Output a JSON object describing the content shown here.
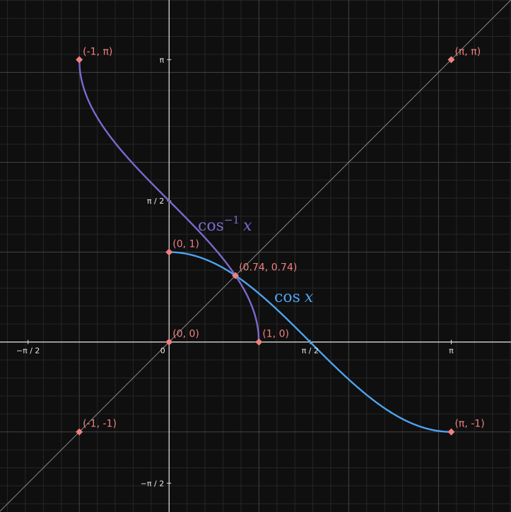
{
  "chart_data": {
    "type": "line",
    "title": "",
    "xlabel": "",
    "ylabel": "",
    "xlim": [
      -1.8828,
      3.8068
    ],
    "ylim": [
      -1.8913,
      3.8053
    ],
    "grid": true,
    "legend": "none",
    "x_ticks": [
      {
        "value": -1.5708,
        "label": "−π / 2"
      },
      {
        "value": 0,
        "label": "0"
      },
      {
        "value": 1.5708,
        "label": "π / 2"
      },
      {
        "value": 3.14159,
        "label": "π"
      }
    ],
    "y_ticks": [
      {
        "value": -1.5708,
        "label": "−π / 2"
      },
      {
        "value": 1.5708,
        "label": "π / 2"
      },
      {
        "value": 3.14159,
        "label": "π"
      }
    ],
    "series": [
      {
        "name": "cos x",
        "label_math": "cos x",
        "color": "#4ea3ee",
        "domain": [
          0,
          3.14159
        ],
        "function": "cos"
      },
      {
        "name": "cos⁻¹ x",
        "label_math": "cos⁻¹ x",
        "color": "#7b6ad0",
        "domain": [
          -1,
          1
        ],
        "function": "acos"
      },
      {
        "name": "y = x",
        "color": "#8a8a8a",
        "domain": [
          -1.8828,
          3.8068
        ],
        "function": "identity"
      }
    ],
    "points": [
      {
        "x": -1,
        "y": 3.14159,
        "label": "(-1, π)"
      },
      {
        "x": 3.14159,
        "y": 3.14159,
        "label": "(π, π)"
      },
      {
        "x": 0,
        "y": 1,
        "label": "(0, 1)"
      },
      {
        "x": 0.739,
        "y": 0.739,
        "label": "(0.74, 0.74)"
      },
      {
        "x": 0,
        "y": 0,
        "label": "(0, 0)"
      },
      {
        "x": 1,
        "y": 0,
        "label": "(1, 0)"
      },
      {
        "x": -1,
        "y": -1,
        "label": "(-1, -1)"
      },
      {
        "x": 3.14159,
        "y": -1,
        "label": "(π, -1)"
      }
    ],
    "colors": {
      "background": "#0f0f0f",
      "grid_minor": "#262626",
      "grid_major": "#444444",
      "axis": "#e8e8e8",
      "point": "#f08080"
    }
  }
}
